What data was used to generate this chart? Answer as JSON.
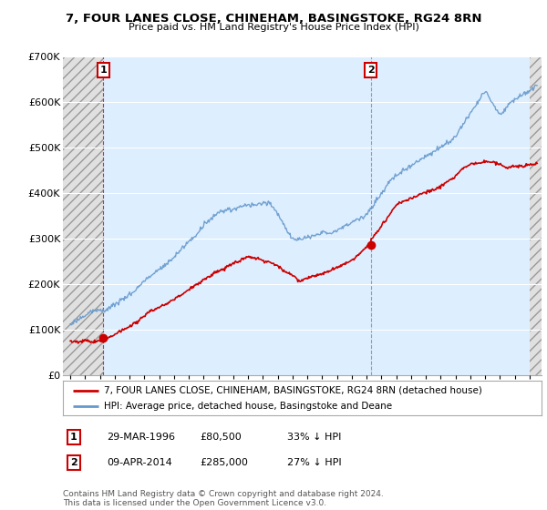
{
  "title": "7, FOUR LANES CLOSE, CHINEHAM, BASINGSTOKE, RG24 8RN",
  "subtitle": "Price paid vs. HM Land Registry's House Price Index (HPI)",
  "legend_line1": "7, FOUR LANES CLOSE, CHINEHAM, BASINGSTOKE, RG24 8RN (detached house)",
  "legend_line2": "HPI: Average price, detached house, Basingstoke and Deane",
  "annotation1": {
    "label": "1",
    "date_str": "29-MAR-1996",
    "price": "£80,500",
    "note": "33% ↓ HPI"
  },
  "annotation2": {
    "label": "2",
    "date_str": "09-APR-2014",
    "price": "£285,000",
    "note": "27% ↓ HPI"
  },
  "footer": "Contains HM Land Registry data © Crown copyright and database right 2024.\nThis data is licensed under the Open Government Licence v3.0.",
  "sale1_x": 1996.23,
  "sale1_y": 80500,
  "sale2_x": 2014.27,
  "sale2_y": 285000,
  "hpi_color": "#6699cc",
  "price_color": "#cc0000",
  "bg_chart": "#ddeeff",
  "ylim": [
    0,
    700000
  ],
  "xlim_start": 1993.5,
  "xlim_end": 2025.8,
  "yticks": [
    0,
    100000,
    200000,
    300000,
    400000,
    500000,
    600000,
    700000
  ],
  "ytick_labels": [
    "£0",
    "£100K",
    "£200K",
    "£300K",
    "£400K",
    "£500K",
    "£600K",
    "£700K"
  ]
}
